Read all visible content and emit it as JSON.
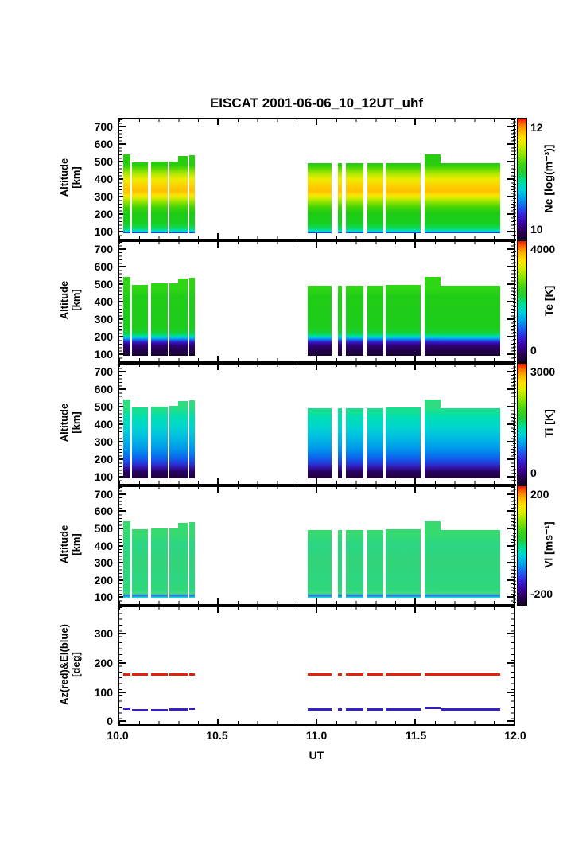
{
  "title": "EISCAT 2001-06-06_10_12UT_uhf",
  "x_axis": {
    "label": "UT",
    "min": 10.0,
    "max": 12.0,
    "tick_values": [
      10.0,
      10.5,
      11.0,
      11.5,
      12.0
    ],
    "tick_labels": [
      "10.0",
      "10.5",
      "11.0",
      "11.5",
      "12.0"
    ],
    "minor_tick_step": 0.1
  },
  "colormap": [
    [
      0.0,
      "#16002a"
    ],
    [
      0.06,
      "#2a0050"
    ],
    [
      0.13,
      "#3c009e"
    ],
    [
      0.2,
      "#3522d8"
    ],
    [
      0.27,
      "#1e5cf0"
    ],
    [
      0.34,
      "#009fee"
    ],
    [
      0.41,
      "#00cfd8"
    ],
    [
      0.48,
      "#00dd99"
    ],
    [
      0.55,
      "#22cc33"
    ],
    [
      0.62,
      "#3ed313"
    ],
    [
      0.7,
      "#8ae300"
    ],
    [
      0.78,
      "#d9ec00"
    ],
    [
      0.84,
      "#ffe200"
    ],
    [
      0.9,
      "#ffb300"
    ],
    [
      0.95,
      "#ff7300"
    ],
    [
      1.0,
      "#f01800"
    ]
  ],
  "chart_data": [
    {
      "type": "heatmap",
      "name": "Ne",
      "ylabel_lines": [
        "Altitude",
        "[km]"
      ],
      "y_min": 60,
      "y_max": 740,
      "yticks": [
        100,
        200,
        300,
        400,
        500,
        600,
        700
      ],
      "colorbar": {
        "title": "Ne [log(m⁻³)]",
        "top": "12",
        "bottom": "10",
        "vmin": 10,
        "vmax": 12
      },
      "bottom_alt": 92,
      "color_stops": [
        [
          90,
          "#2b00d5"
        ],
        [
          96,
          "#0073ff"
        ],
        [
          101,
          "#00d2e8"
        ],
        [
          110,
          "#00dfa0"
        ],
        [
          122,
          "#0fd955"
        ],
        [
          150,
          "#17cf1f"
        ],
        [
          205,
          "#1ecb13"
        ],
        [
          240,
          "#43d506"
        ],
        [
          262,
          "#7ce000"
        ],
        [
          283,
          "#b5e900"
        ],
        [
          298,
          "#e6ed00"
        ],
        [
          312,
          "#fddf00"
        ],
        [
          330,
          "#ffc000"
        ],
        [
          352,
          "#fec900"
        ],
        [
          375,
          "#f7dc00"
        ],
        [
          398,
          "#eeeb00"
        ],
        [
          420,
          "#c3ea00"
        ],
        [
          442,
          "#8fe300"
        ],
        [
          462,
          "#52d804"
        ],
        [
          482,
          "#27cd0e"
        ],
        [
          545,
          "#25cd10"
        ]
      ],
      "segments": [
        [
          10.02,
          10.055,
          540
        ],
        [
          10.064,
          10.144,
          495
        ],
        [
          10.16,
          10.245,
          500
        ],
        [
          10.256,
          10.3,
          500
        ],
        [
          10.3,
          10.348,
          530
        ],
        [
          10.356,
          10.385,
          535
        ],
        [
          10.956,
          11.076,
          490
        ],
        [
          11.108,
          11.128,
          490
        ],
        [
          11.148,
          11.236,
          490
        ],
        [
          11.26,
          11.34,
          490
        ],
        [
          11.35,
          11.53,
          493
        ],
        [
          11.55,
          11.63,
          540
        ],
        [
          11.63,
          11.93,
          490
        ]
      ]
    },
    {
      "type": "heatmap",
      "name": "Te",
      "ylabel_lines": [
        "Altitude",
        "[km]"
      ],
      "y_min": 60,
      "y_max": 740,
      "yticks": [
        100,
        200,
        300,
        400,
        500,
        600,
        700
      ],
      "colorbar": {
        "title": "Te [K]",
        "top": "4000",
        "bottom": "0",
        "vmin": 0,
        "vmax": 4000
      },
      "bottom_alt": 92,
      "color_stops": [
        [
          90,
          "#160031"
        ],
        [
          130,
          "#250055"
        ],
        [
          152,
          "#33007e"
        ],
        [
          168,
          "#3317c1"
        ],
        [
          180,
          "#1e58e8"
        ],
        [
          190,
          "#00a5f0"
        ],
        [
          198,
          "#00d6cf"
        ],
        [
          208,
          "#00dc8b"
        ],
        [
          220,
          "#14d23e"
        ],
        [
          250,
          "#1dcd1b"
        ],
        [
          430,
          "#20cd16"
        ],
        [
          475,
          "#2fd613"
        ],
        [
          545,
          "#2cd316"
        ]
      ],
      "segments": [
        [
          10.02,
          10.055,
          540
        ],
        [
          10.064,
          10.144,
          495
        ],
        [
          10.16,
          10.245,
          505
        ],
        [
          10.256,
          10.3,
          505
        ],
        [
          10.3,
          10.348,
          530
        ],
        [
          10.356,
          10.385,
          535
        ],
        [
          10.956,
          11.076,
          490
        ],
        [
          11.108,
          11.128,
          490
        ],
        [
          11.148,
          11.236,
          490
        ],
        [
          11.26,
          11.34,
          490
        ],
        [
          11.35,
          11.53,
          495
        ],
        [
          11.55,
          11.63,
          540
        ],
        [
          11.63,
          11.93,
          492
        ]
      ]
    },
    {
      "type": "heatmap",
      "name": "Ti",
      "ylabel_lines": [
        "Altitude",
        "[km]"
      ],
      "y_min": 60,
      "y_max": 740,
      "yticks": [
        100,
        200,
        300,
        400,
        500,
        600,
        700
      ],
      "colorbar": {
        "title": "Ti [K]",
        "top": "3000",
        "bottom": "0",
        "vmin": 0,
        "vmax": 3000
      },
      "bottom_alt": 92,
      "color_stops": [
        [
          90,
          "#1d0038"
        ],
        [
          128,
          "#290060"
        ],
        [
          148,
          "#320f9c"
        ],
        [
          170,
          "#2c2fd0"
        ],
        [
          195,
          "#1653e8"
        ],
        [
          225,
          "#0676ee"
        ],
        [
          258,
          "#0095ec"
        ],
        [
          295,
          "#00abe6"
        ],
        [
          340,
          "#00c4de"
        ],
        [
          390,
          "#00d7cb"
        ],
        [
          440,
          "#00dfb2"
        ],
        [
          470,
          "#17df92"
        ],
        [
          500,
          "#2ede7e"
        ],
        [
          545,
          "#2ede7e"
        ]
      ],
      "segments": [
        [
          10.02,
          10.055,
          540
        ],
        [
          10.064,
          10.144,
          495
        ],
        [
          10.16,
          10.245,
          500
        ],
        [
          10.256,
          10.3,
          503
        ],
        [
          10.3,
          10.348,
          530
        ],
        [
          10.356,
          10.385,
          535
        ],
        [
          10.956,
          11.076,
          490
        ],
        [
          11.108,
          11.128,
          490
        ],
        [
          11.148,
          11.236,
          490
        ],
        [
          11.26,
          11.34,
          490
        ],
        [
          11.35,
          11.53,
          495
        ],
        [
          11.55,
          11.63,
          540
        ],
        [
          11.63,
          11.93,
          490
        ]
      ]
    },
    {
      "type": "heatmap",
      "name": "Vi",
      "ylabel_lines": [
        "Altitude",
        "[km]"
      ],
      "y_min": 60,
      "y_max": 740,
      "yticks": [
        100,
        200,
        300,
        400,
        500,
        600,
        700
      ],
      "colorbar": {
        "title": "Vi [ms⁻¹]",
        "top": "200",
        "bottom": "-200",
        "vmin": -200,
        "vmax": 200
      },
      "bottom_alt": 94,
      "color_stops": [
        [
          94,
          "#27ddb2"
        ],
        [
          102,
          "#1fd3cf"
        ],
        [
          110,
          "#3f64e4"
        ],
        [
          118,
          "#26c0da"
        ],
        [
          126,
          "#51da62"
        ],
        [
          136,
          "#2ada8d"
        ],
        [
          152,
          "#30d776"
        ],
        [
          205,
          "#2dd681"
        ],
        [
          300,
          "#32d478"
        ],
        [
          400,
          "#2cd685"
        ],
        [
          470,
          "#36da6e"
        ],
        [
          545,
          "#2fd87f"
        ]
      ],
      "segments": [
        [
          10.02,
          10.055,
          540
        ],
        [
          10.064,
          10.144,
          495
        ],
        [
          10.16,
          10.245,
          500
        ],
        [
          10.256,
          10.3,
          500
        ],
        [
          10.3,
          10.348,
          530
        ],
        [
          10.356,
          10.385,
          535
        ],
        [
          10.956,
          11.076,
          490
        ],
        [
          11.108,
          11.128,
          490
        ],
        [
          11.148,
          11.236,
          490
        ],
        [
          11.26,
          11.34,
          490
        ],
        [
          11.35,
          11.53,
          495
        ],
        [
          11.55,
          11.63,
          540
        ],
        [
          11.63,
          11.93,
          490
        ]
      ]
    },
    {
      "type": "line",
      "name": "AzEl",
      "ylabel_lines": [
        "Az(red)&El(blue)",
        "[deg]"
      ],
      "y_min": -10,
      "y_max": 390,
      "yticks": [
        0,
        100,
        200,
        300
      ],
      "lines": [
        {
          "name": "Az",
          "color": "#e8200a",
          "segments": [
            [
              10.02,
              10.055,
              160
            ],
            [
              10.064,
              10.144,
              160
            ],
            [
              10.16,
              10.245,
              160
            ],
            [
              10.256,
              10.348,
              160
            ],
            [
              10.356,
              10.385,
              160
            ],
            [
              10.956,
              11.076,
              160
            ],
            [
              11.108,
              11.128,
              160
            ],
            [
              11.148,
              11.236,
              160
            ],
            [
              11.26,
              11.34,
              160
            ],
            [
              11.35,
              11.53,
              160
            ],
            [
              11.55,
              11.93,
              160
            ]
          ]
        },
        {
          "name": "El",
          "color": "#3520c8",
          "segments": [
            [
              10.02,
              10.055,
              43
            ],
            [
              10.064,
              10.144,
              39
            ],
            [
              10.16,
              10.245,
              39
            ],
            [
              10.256,
              10.348,
              41
            ],
            [
              10.356,
              10.385,
              43
            ],
            [
              10.956,
              11.076,
              41
            ],
            [
              11.108,
              11.128,
              41
            ],
            [
              11.148,
              11.236,
              41
            ],
            [
              11.26,
              11.34,
              41
            ],
            [
              11.35,
              11.53,
              41
            ],
            [
              11.55,
              11.63,
              47
            ],
            [
              11.63,
              11.93,
              41
            ]
          ]
        }
      ]
    }
  ]
}
